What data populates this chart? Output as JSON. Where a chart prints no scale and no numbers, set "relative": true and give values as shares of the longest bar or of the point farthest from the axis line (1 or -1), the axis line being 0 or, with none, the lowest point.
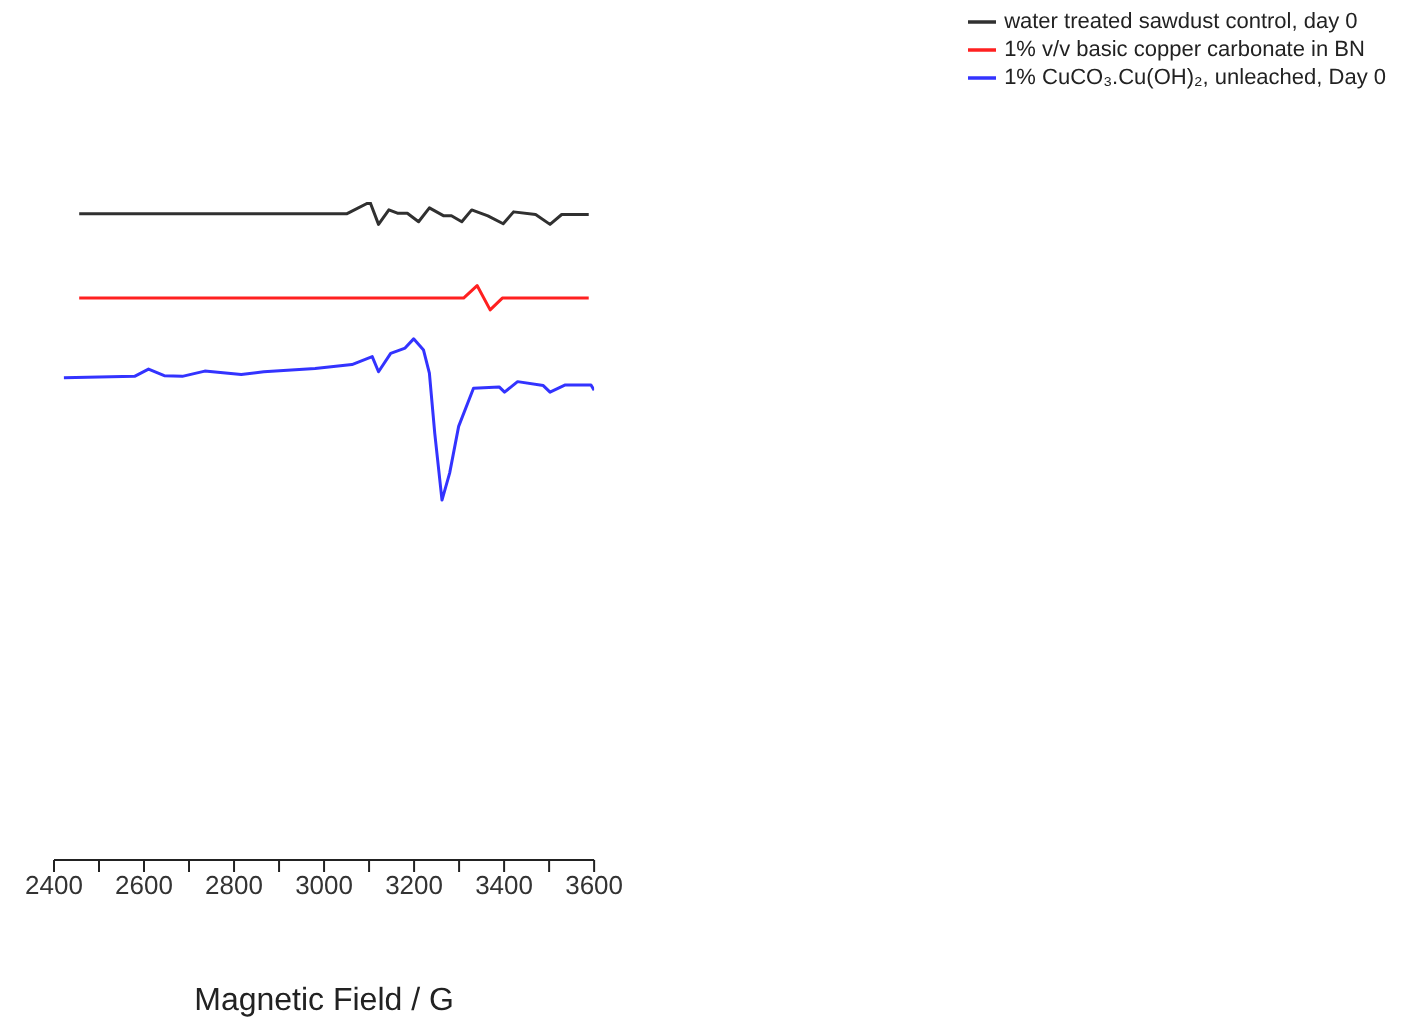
{
  "chart_data": {
    "type": "line",
    "relative": true,
    "xlabel": "Magnetic Field / G",
    "xlim": [
      2400,
      3600
    ],
    "xticks": [
      2400,
      {
        "value": 2500,
        "label": null
      },
      2600,
      {
        "value": 2700,
        "label": null
      },
      2800,
      {
        "value": 2900,
        "label": null
      },
      3000,
      {
        "value": 3100,
        "label": null
      },
      3200,
      {
        "value": 3300,
        "label": null
      },
      3400,
      {
        "value": 3500,
        "label": null
      },
      3600
    ],
    "legend": "top right",
    "tick_labels": "x",
    "series": [
      {
        "name": "water treated sawdust control, day 0",
        "color": "#303030",
        "x": [
          2456,
          3050,
          3102,
          3121,
          3144,
          3163,
          3185,
          3210,
          3234,
          3266,
          3283,
          3306,
          3328,
          3364,
          3398,
          3421,
          3470,
          3502,
          3528,
          3588
        ],
        "values": [
          0.982,
          0.982,
          1.0,
          0.966,
          0.988,
          0.983,
          0.983,
          0.97,
          0.991,
          0.979,
          0.979,
          0.97,
          0.988,
          0.979,
          0.967,
          0.985,
          0.981,
          0.966,
          0.981,
          0.981
        ]
      },
      {
        "name": "1% v/v basic copper carbonate in BN",
        "color": "#ff2020",
        "x": [
          2456,
          3310,
          3340,
          3369,
          3396,
          3588
        ],
        "values": [
          0.854,
          0.854,
          0.873,
          0.836,
          0.854,
          0.854
        ]
      },
      {
        "name": "1% CuCO₃.Cu(OH)₂, unleached, Day 0",
        "color": "#3333ff",
        "x": [
          2422,
          2579,
          2610,
          2645,
          2685,
          2735,
          2816,
          2866,
          2980,
          3062,
          3107,
          3121,
          3148,
          3180,
          3199,
          3221,
          3234,
          3246,
          3262,
          3279,
          3299,
          3332,
          3389,
          3401,
          3430,
          3487,
          3502,
          3536,
          3593,
          3600
        ],
        "values": [
          0.733,
          0.735,
          0.746,
          0.736,
          0.735,
          0.743,
          0.738,
          0.742,
          0.747,
          0.753,
          0.765,
          0.742,
          0.77,
          0.778,
          0.792,
          0.775,
          0.74,
          0.648,
          0.547,
          0.588,
          0.659,
          0.717,
          0.719,
          0.711,
          0.727,
          0.721,
          0.711,
          0.722,
          0.722,
          0.714
        ]
      }
    ]
  }
}
